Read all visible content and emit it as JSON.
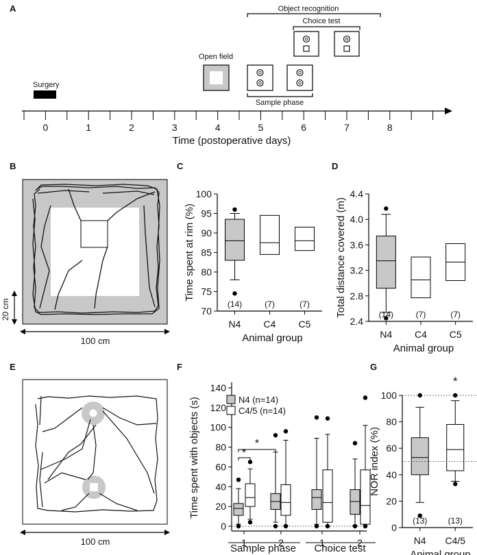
{
  "figure": {
    "panel_labels": [
      "A",
      "B",
      "C",
      "D",
      "E",
      "F",
      "G"
    ]
  },
  "panel_a": {
    "title_object_recognition": "Object recognition",
    "title_choice_test": "Choice test",
    "title_open_field": "Open field",
    "title_surgery": "Surgery",
    "title_sample_phase": "Sample phase",
    "axis_label": "Time (postoperative days)",
    "ticks": [
      "0",
      "1",
      "2",
      "3",
      "4",
      "5",
      "6",
      "7",
      "8"
    ]
  },
  "panel_b": {
    "scale_v": "20 cm",
    "scale_h": "100 cm"
  },
  "panel_e": {
    "scale_h": "100 cm"
  },
  "chart_data": [
    {
      "id": "C",
      "type": "box",
      "ylabel": "Time spent at rim (%)",
      "xlabel": "Animal group",
      "ylim": [
        70,
        100
      ],
      "yticks": [
        "70",
        "75",
        "80",
        "85",
        "90",
        "95",
        "100"
      ],
      "groups": [
        {
          "name": "N4",
          "n": "(14)",
          "q1": 83,
          "median": 88,
          "q3": 93.5,
          "whisker_low": 78,
          "whisker_high": 95,
          "outliers": [
            96,
            74.5
          ],
          "fill": "#c8c8c8"
        },
        {
          "name": "C4",
          "n": "(7)",
          "q1": 84.5,
          "median": 87.5,
          "q3": 94.5,
          "fill": "#ffffff"
        },
        {
          "name": "C5",
          "n": "(7)",
          "q1": 85.5,
          "median": 88,
          "q3": 91.5,
          "fill": "#ffffff"
        }
      ]
    },
    {
      "id": "D",
      "type": "box",
      "ylabel": "Total distance covered (m)",
      "xlabel": "Animal group",
      "ylim": [
        2.4,
        4.4
      ],
      "yticks": [
        "2.4",
        "2.8",
        "3.2",
        "3.6",
        "4.0",
        "4.4"
      ],
      "groups": [
        {
          "name": "N4",
          "n": "(14)",
          "q1": 2.92,
          "median": 3.35,
          "q3": 3.74,
          "whisker_low": 2.54,
          "whisker_high": 4.08,
          "outliers": [
            4.17,
            2.45
          ],
          "fill": "#c8c8c8"
        },
        {
          "name": "C4",
          "n": "(7)",
          "q1": 2.77,
          "median": 3.05,
          "q3": 3.41,
          "fill": "#ffffff"
        },
        {
          "name": "C5",
          "n": "(7)",
          "q1": 3.04,
          "median": 3.33,
          "q3": 3.62,
          "fill": "#ffffff"
        }
      ]
    },
    {
      "id": "F",
      "type": "box",
      "ylabel": "Time spent with objects (s)",
      "ylim": [
        -10,
        140
      ],
      "yticks": [
        "0",
        "20",
        "40",
        "60",
        "80",
        "100",
        "120",
        "140"
      ],
      "legend": [
        {
          "name": "N4 (n=14)",
          "fill": "#c8c8c8"
        },
        {
          "name": "C4/5 (n=14)",
          "fill": "#ffffff"
        }
      ],
      "xticks": [
        "1",
        "2",
        "1",
        "2"
      ],
      "xgroups": [
        "Sample phase",
        "Choice test"
      ],
      "significance": [
        "*",
        "*"
      ],
      "boxes": [
        {
          "series": "N4 (n=14)",
          "q1": 11,
          "median": 18,
          "q3": 23,
          "whisker_low": 2,
          "whisker_high": 38,
          "outliers": [
            47,
            0
          ],
          "fill": "#c8c8c8"
        },
        {
          "series": "C4/5 (n=14)",
          "q1": 20,
          "median": 29,
          "q3": 43,
          "whisker_low": 7,
          "whisker_high": 58,
          "outliers": [
            65,
            4
          ],
          "fill": "#ffffff"
        },
        {
          "series": "N4 (n=14)",
          "q1": 17,
          "median": 25,
          "q3": 33,
          "whisker_low": 4,
          "whisker_high": 75,
          "outliers": [
            92,
            0
          ],
          "fill": "#c8c8c8"
        },
        {
          "series": "C4/5 (n=14)",
          "q1": 11,
          "median": 24,
          "q3": 42,
          "whisker_low": 1,
          "whisker_high": 87,
          "outliers": [
            96,
            0
          ],
          "fill": "#ffffff"
        },
        {
          "series": "N4 (n=14)",
          "q1": 17,
          "median": 29,
          "q3": 37,
          "whisker_low": 2,
          "whisker_high": 89,
          "outliers": [
            110,
            0
          ],
          "fill": "#c8c8c8"
        },
        {
          "series": "C4/5 (n=14)",
          "q1": 4,
          "median": 24,
          "q3": 57,
          "whisker_low": 0,
          "whisker_high": 93,
          "outliers": [
            109,
            0
          ],
          "fill": "#ffffff"
        },
        {
          "series": "N4 (n=14)",
          "q1": 12,
          "median": 25,
          "q3": 37,
          "whisker_low": 1,
          "whisker_high": 68,
          "outliers": [
            84,
            0
          ],
          "fill": "#c8c8c8"
        },
        {
          "series": "C4/5 (n=14)",
          "q1": 2,
          "median": 21,
          "q3": 57,
          "whisker_low": 0,
          "whisker_high": 102,
          "outliers": [
            130,
            0
          ],
          "fill": "#ffffff"
        }
      ]
    },
    {
      "id": "G",
      "type": "box",
      "ylabel": "NOR index (%)",
      "xlabel": "Animal group",
      "ylim": [
        -5,
        110
      ],
      "yticks": [
        "0",
        "20",
        "40",
        "60",
        "80",
        "100"
      ],
      "reference_lines": [
        100,
        50
      ],
      "significance": [
        "*"
      ],
      "groups": [
        {
          "name": "N4",
          "n": "(13)",
          "q1": 40,
          "median": 53,
          "q3": 68,
          "whisker_low": 19,
          "whisker_high": 91,
          "outliers": [
            100,
            9
          ],
          "fill": "#c8c8c8"
        },
        {
          "name": "C4/5",
          "n": "(13)",
          "q1": 43,
          "median": 59,
          "q3": 78,
          "whisker_low": 35,
          "whisker_high": 96,
          "outliers": [
            100,
            33
          ],
          "fill": "#ffffff"
        }
      ]
    }
  ]
}
